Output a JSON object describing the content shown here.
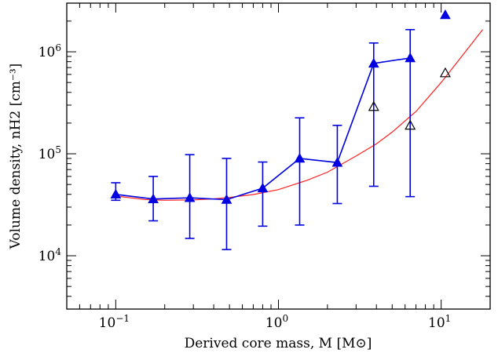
{
  "chart_data": {
    "type": "scatter",
    "xscale": "log",
    "yscale": "log",
    "xlim": [
      0.05,
      20
    ],
    "ylim": [
      3000,
      3000000
    ],
    "xlabel": "Derived core mass, M [M⊙]",
    "ylabel": "Volume density, nH2 [cm⁻³]",
    "xticks": [
      {
        "value": 0.1,
        "mant": "10",
        "exp": "−1"
      },
      {
        "value": 1,
        "mant": "10",
        "exp": "0"
      },
      {
        "value": 10,
        "mant": "10",
        "exp": "1"
      }
    ],
    "yticks": [
      {
        "value": 10000,
        "mant": "10",
        "exp": "4"
      },
      {
        "value": 100000,
        "mant": "10",
        "exp": "5"
      },
      {
        "value": 1000000,
        "mant": "10",
        "exp": "6"
      }
    ],
    "series": [
      {
        "kind": "line-with-errorbars",
        "marker": "filled-triangle",
        "color": "#0000e0",
        "x": [
          0.1,
          0.17,
          0.285,
          0.48,
          0.8,
          1.35,
          2.3,
          3.85,
          6.45
        ],
        "y": [
          40000,
          36000,
          37000,
          35500,
          46000,
          90000,
          82000,
          770000,
          870000
        ],
        "y_low": [
          35000,
          22000,
          14800,
          11500,
          19500,
          20000,
          32500,
          48000,
          38000
        ],
        "y_high": [
          52000,
          60000,
          98000,
          90000,
          83000,
          225000,
          190000,
          1220000,
          1650000
        ]
      },
      {
        "kind": "points",
        "marker": "filled-triangle",
        "color": "#0000e0",
        "x": [
          10.6
        ],
        "y": [
          2300000
        ]
      },
      {
        "kind": "points",
        "marker": "open-triangle",
        "color": "#000000",
        "x": [
          3.85,
          6.45,
          10.6
        ],
        "y": [
          290000,
          190000,
          620000
        ]
      },
      {
        "kind": "curve",
        "color": "#ff2020",
        "x": [
          0.1,
          0.15,
          0.2,
          0.3,
          0.4,
          0.5,
          0.7,
          1.0,
          1.5,
          2.0,
          3.0,
          4.0,
          5.0,
          7.0,
          10.0,
          13.0,
          18.0
        ],
        "y": [
          38500,
          35600,
          35000,
          35300,
          36100,
          37300,
          39800,
          44500,
          55000,
          66000,
          95000,
          125000,
          163000,
          260000,
          500000,
          850000,
          1650000
        ]
      }
    ]
  }
}
